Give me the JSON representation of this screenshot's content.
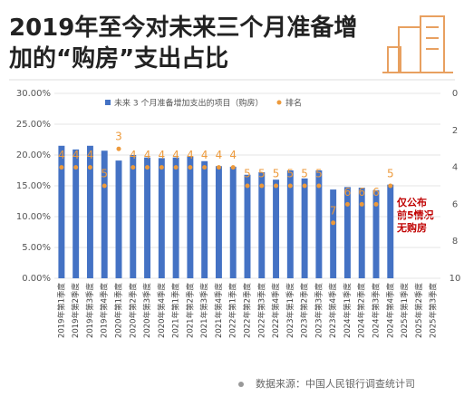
{
  "chart_data": {
    "type": "bar",
    "title": "2019年至今对未来三个月准备增加的“购房”支出占比",
    "categories": [
      "2019年第1季度",
      "2019年第2季度",
      "2019年第3季度",
      "2019年第4季度",
      "2020年第1季度",
      "2020年第2季度",
      "2020年第3季度",
      "2020年第4季度",
      "2021年第1季度",
      "2021年第2季度",
      "2021年第3季度",
      "2021年第4季度",
      "2022年第1季度",
      "2022年第2季度",
      "2022年第3季度",
      "2022年第4季度",
      "2023年第1季度",
      "2023年第2季度",
      "2023年第3季度",
      "2023年第4季度",
      "2024年第1季度",
      "2024年第2季度",
      "2024年第3季度",
      "2024年第4季度",
      "2025年第1季度",
      "2025年第2季度",
      "2025年第3季度"
    ],
    "series": [
      {
        "name": "未来 3 个月准备增加支出的项目（购房）",
        "color": "#4472c4",
        "values": [
          21.5,
          20.9,
          21.5,
          20.7,
          19.1,
          20.0,
          19.6,
          19.5,
          19.6,
          19.8,
          19.0,
          18.2,
          18.1,
          16.8,
          17.2,
          16.0,
          17.5,
          16.2,
          17.5,
          14.4,
          14.8,
          14.7,
          14.3,
          15.2,
          null,
          null,
          null
        ]
      },
      {
        "name": "排名",
        "color": "#ed9a3c",
        "axis": "y2",
        "values": [
          4,
          4,
          4,
          5,
          3,
          4,
          4,
          4,
          4,
          4,
          4,
          4,
          4,
          5,
          5,
          5,
          5,
          5,
          5,
          7,
          6,
          6,
          6,
          5,
          null,
          null,
          null
        ]
      }
    ],
    "ylim": [
      0,
      30
    ],
    "yticks": [
      {
        "value": 0,
        "label": "0.00%"
      },
      {
        "value": 5,
        "label": "5.00%"
      },
      {
        "value": 10,
        "label": "10.00%"
      },
      {
        "value": 15,
        "label": "15.00%"
      },
      {
        "value": 20,
        "label": "20.00%"
      },
      {
        "value": 25,
        "label": "25.00%"
      },
      {
        "value": 30,
        "label": "30.00%"
      }
    ],
    "y2lim": [
      0,
      10
    ],
    "y2ticks": [
      0,
      2,
      4,
      6,
      8,
      10
    ],
    "y2_inverted": true,
    "annotation": "仅公布前5情况无购房",
    "source": "数据来源：中国人民银行调查统计司"
  }
}
